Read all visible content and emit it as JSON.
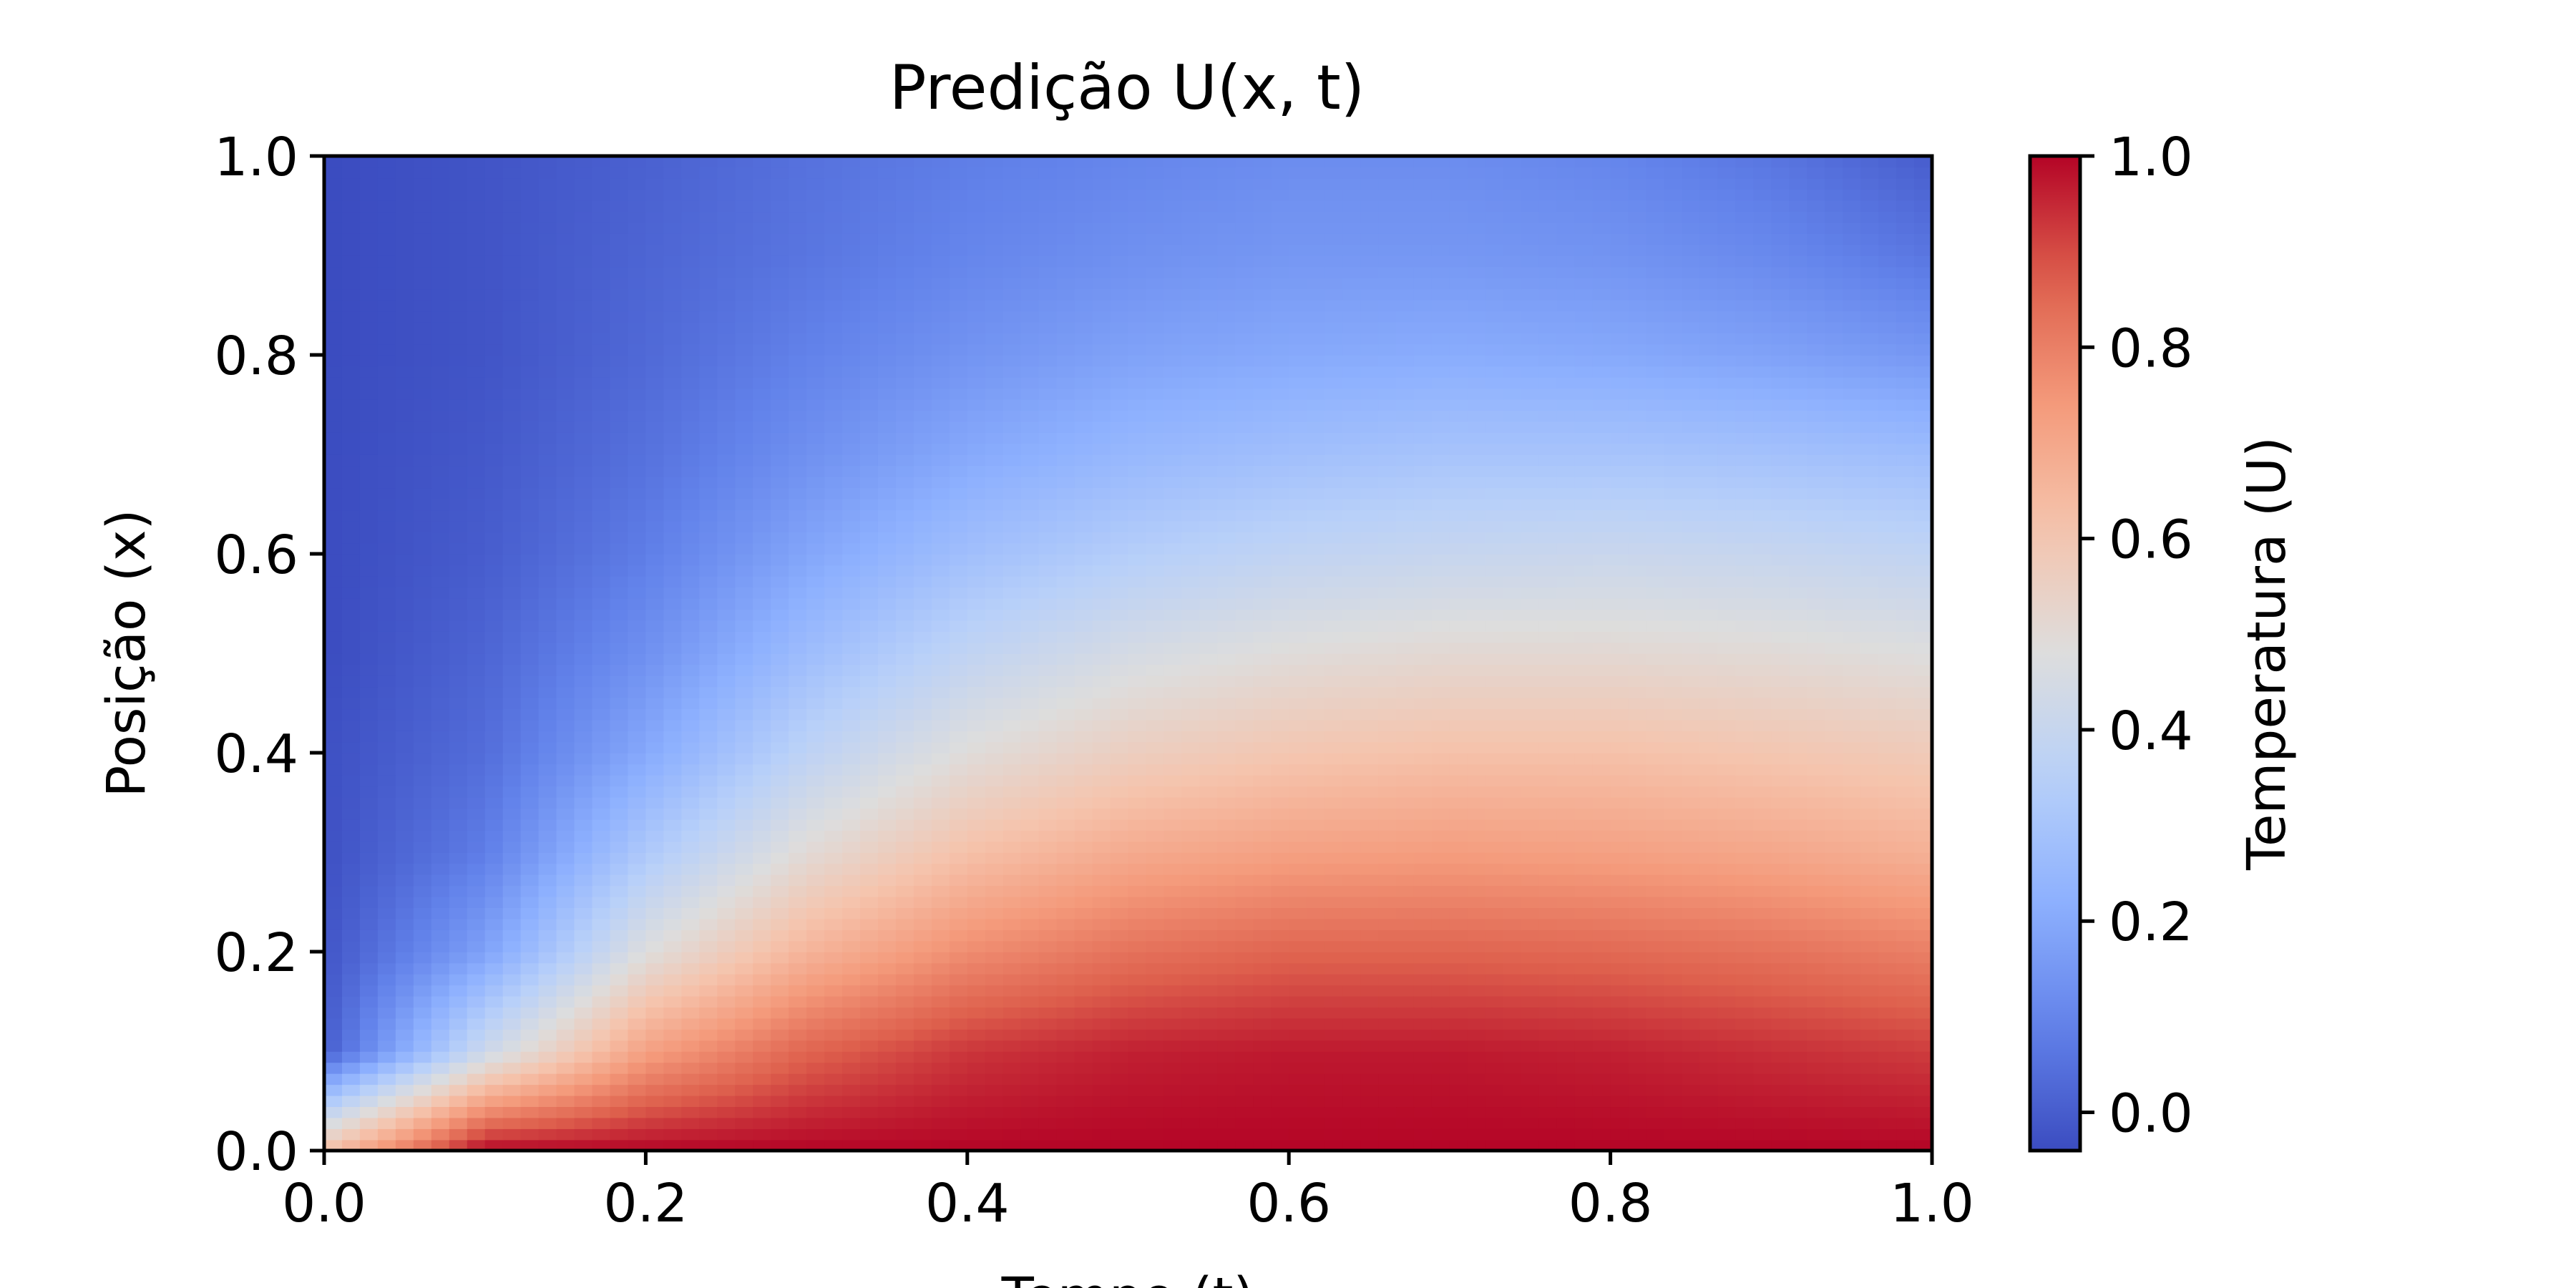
{
  "chart_data": {
    "type": "heatmap",
    "title": "Predição U(x, t)",
    "xlabel": "Tempo (t)",
    "ylabel": "Posição (x)",
    "xlim": [
      0.0,
      1.0
    ],
    "ylim": [
      0.0,
      1.0
    ],
    "x_ticks": [
      "0.0",
      "0.2",
      "0.4",
      "0.6",
      "0.8",
      "1.0"
    ],
    "y_ticks": [
      "0.0",
      "0.2",
      "0.4",
      "0.6",
      "0.8",
      "1.0"
    ],
    "colorbar": {
      "label": "Temperatura (U)",
      "ticks": [
        "0.0",
        "0.2",
        "0.4",
        "0.6",
        "0.8",
        "1.0"
      ],
      "range": [
        -0.04,
        1.0
      ],
      "colormap": "coolwarm"
    },
    "grid": false,
    "x": [
      0.0,
      0.1,
      0.2,
      0.3,
      0.4,
      0.5,
      0.6,
      0.7,
      0.8,
      0.9,
      1.0
    ],
    "y": [
      0.0,
      0.1,
      0.2,
      0.3,
      0.4,
      0.5,
      0.6,
      0.7,
      0.8,
      0.9,
      1.0
    ],
    "z": [
      [
        0.62,
        1.0,
        1.0,
        1.0,
        1.0,
        1.0,
        1.0,
        1.0,
        1.0,
        1.0,
        1.0
      ],
      [
        0.0,
        0.42,
        0.72,
        0.86,
        0.93,
        0.96,
        0.97,
        0.97,
        0.96,
        0.94,
        0.92
      ],
      [
        -0.02,
        0.18,
        0.48,
        0.66,
        0.77,
        0.83,
        0.86,
        0.86,
        0.85,
        0.83,
        0.8
      ],
      [
        -0.03,
        0.08,
        0.32,
        0.5,
        0.62,
        0.69,
        0.72,
        0.73,
        0.72,
        0.7,
        0.67
      ],
      [
        -0.03,
        0.04,
        0.2,
        0.37,
        0.49,
        0.56,
        0.6,
        0.62,
        0.62,
        0.6,
        0.58
      ],
      [
        -0.04,
        0.02,
        0.13,
        0.27,
        0.38,
        0.45,
        0.49,
        0.51,
        0.51,
        0.5,
        0.48
      ],
      [
        -0.04,
        0.0,
        0.08,
        0.19,
        0.28,
        0.34,
        0.38,
        0.4,
        0.41,
        0.4,
        0.38
      ],
      [
        -0.04,
        -0.01,
        0.05,
        0.13,
        0.2,
        0.25,
        0.28,
        0.3,
        0.3,
        0.29,
        0.27
      ],
      [
        -0.04,
        -0.02,
        0.03,
        0.09,
        0.14,
        0.18,
        0.2,
        0.21,
        0.2,
        0.18,
        0.15
      ],
      [
        -0.04,
        -0.02,
        0.02,
        0.06,
        0.1,
        0.13,
        0.15,
        0.15,
        0.14,
        0.11,
        0.06
      ],
      [
        -0.04,
        -0.02,
        0.01,
        0.05,
        0.08,
        0.1,
        0.12,
        0.12,
        0.1,
        0.06,
        0.0
      ]
    ]
  }
}
